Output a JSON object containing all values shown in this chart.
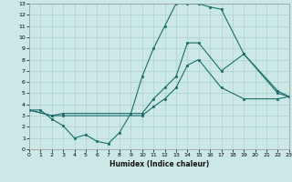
{
  "title": "",
  "xlabel": "Humidex (Indice chaleur)",
  "bg_color": "#cce8e6",
  "grid_color": "#aacfcd",
  "line_color": "#1a6e6a",
  "xlim": [
    0,
    23
  ],
  "ylim": [
    0,
    13
  ],
  "xticks": [
    0,
    1,
    2,
    3,
    4,
    5,
    6,
    7,
    8,
    9,
    10,
    11,
    12,
    13,
    14,
    15,
    16,
    17,
    18,
    19,
    20,
    21,
    22,
    23
  ],
  "yticks": [
    0,
    1,
    2,
    3,
    4,
    5,
    6,
    7,
    8,
    9,
    10,
    11,
    12,
    13
  ],
  "line1_x": [
    0,
    1,
    2,
    3,
    4,
    5,
    6,
    7,
    8,
    9,
    10,
    11,
    12,
    13,
    14,
    15,
    16,
    17,
    19,
    22,
    23
  ],
  "line1_y": [
    3.5,
    3.5,
    2.7,
    2.1,
    1.0,
    1.3,
    0.7,
    0.5,
    1.5,
    3.2,
    6.5,
    9.0,
    11.0,
    13.0,
    13.0,
    13.0,
    12.7,
    12.5,
    8.5,
    5.0,
    4.7
  ],
  "line2_x": [
    0,
    2,
    3,
    10,
    11,
    12,
    13,
    14,
    15,
    17,
    19,
    22,
    23
  ],
  "line2_y": [
    3.5,
    3.0,
    3.2,
    3.2,
    4.5,
    5.5,
    6.5,
    9.5,
    9.5,
    7.0,
    8.5,
    5.2,
    4.7
  ],
  "line3_x": [
    0,
    2,
    3,
    10,
    11,
    12,
    13,
    14,
    15,
    17,
    19,
    22,
    23
  ],
  "line3_y": [
    3.5,
    3.0,
    3.0,
    3.0,
    3.8,
    4.5,
    5.5,
    7.5,
    8.0,
    5.5,
    4.5,
    4.5,
    4.7
  ]
}
